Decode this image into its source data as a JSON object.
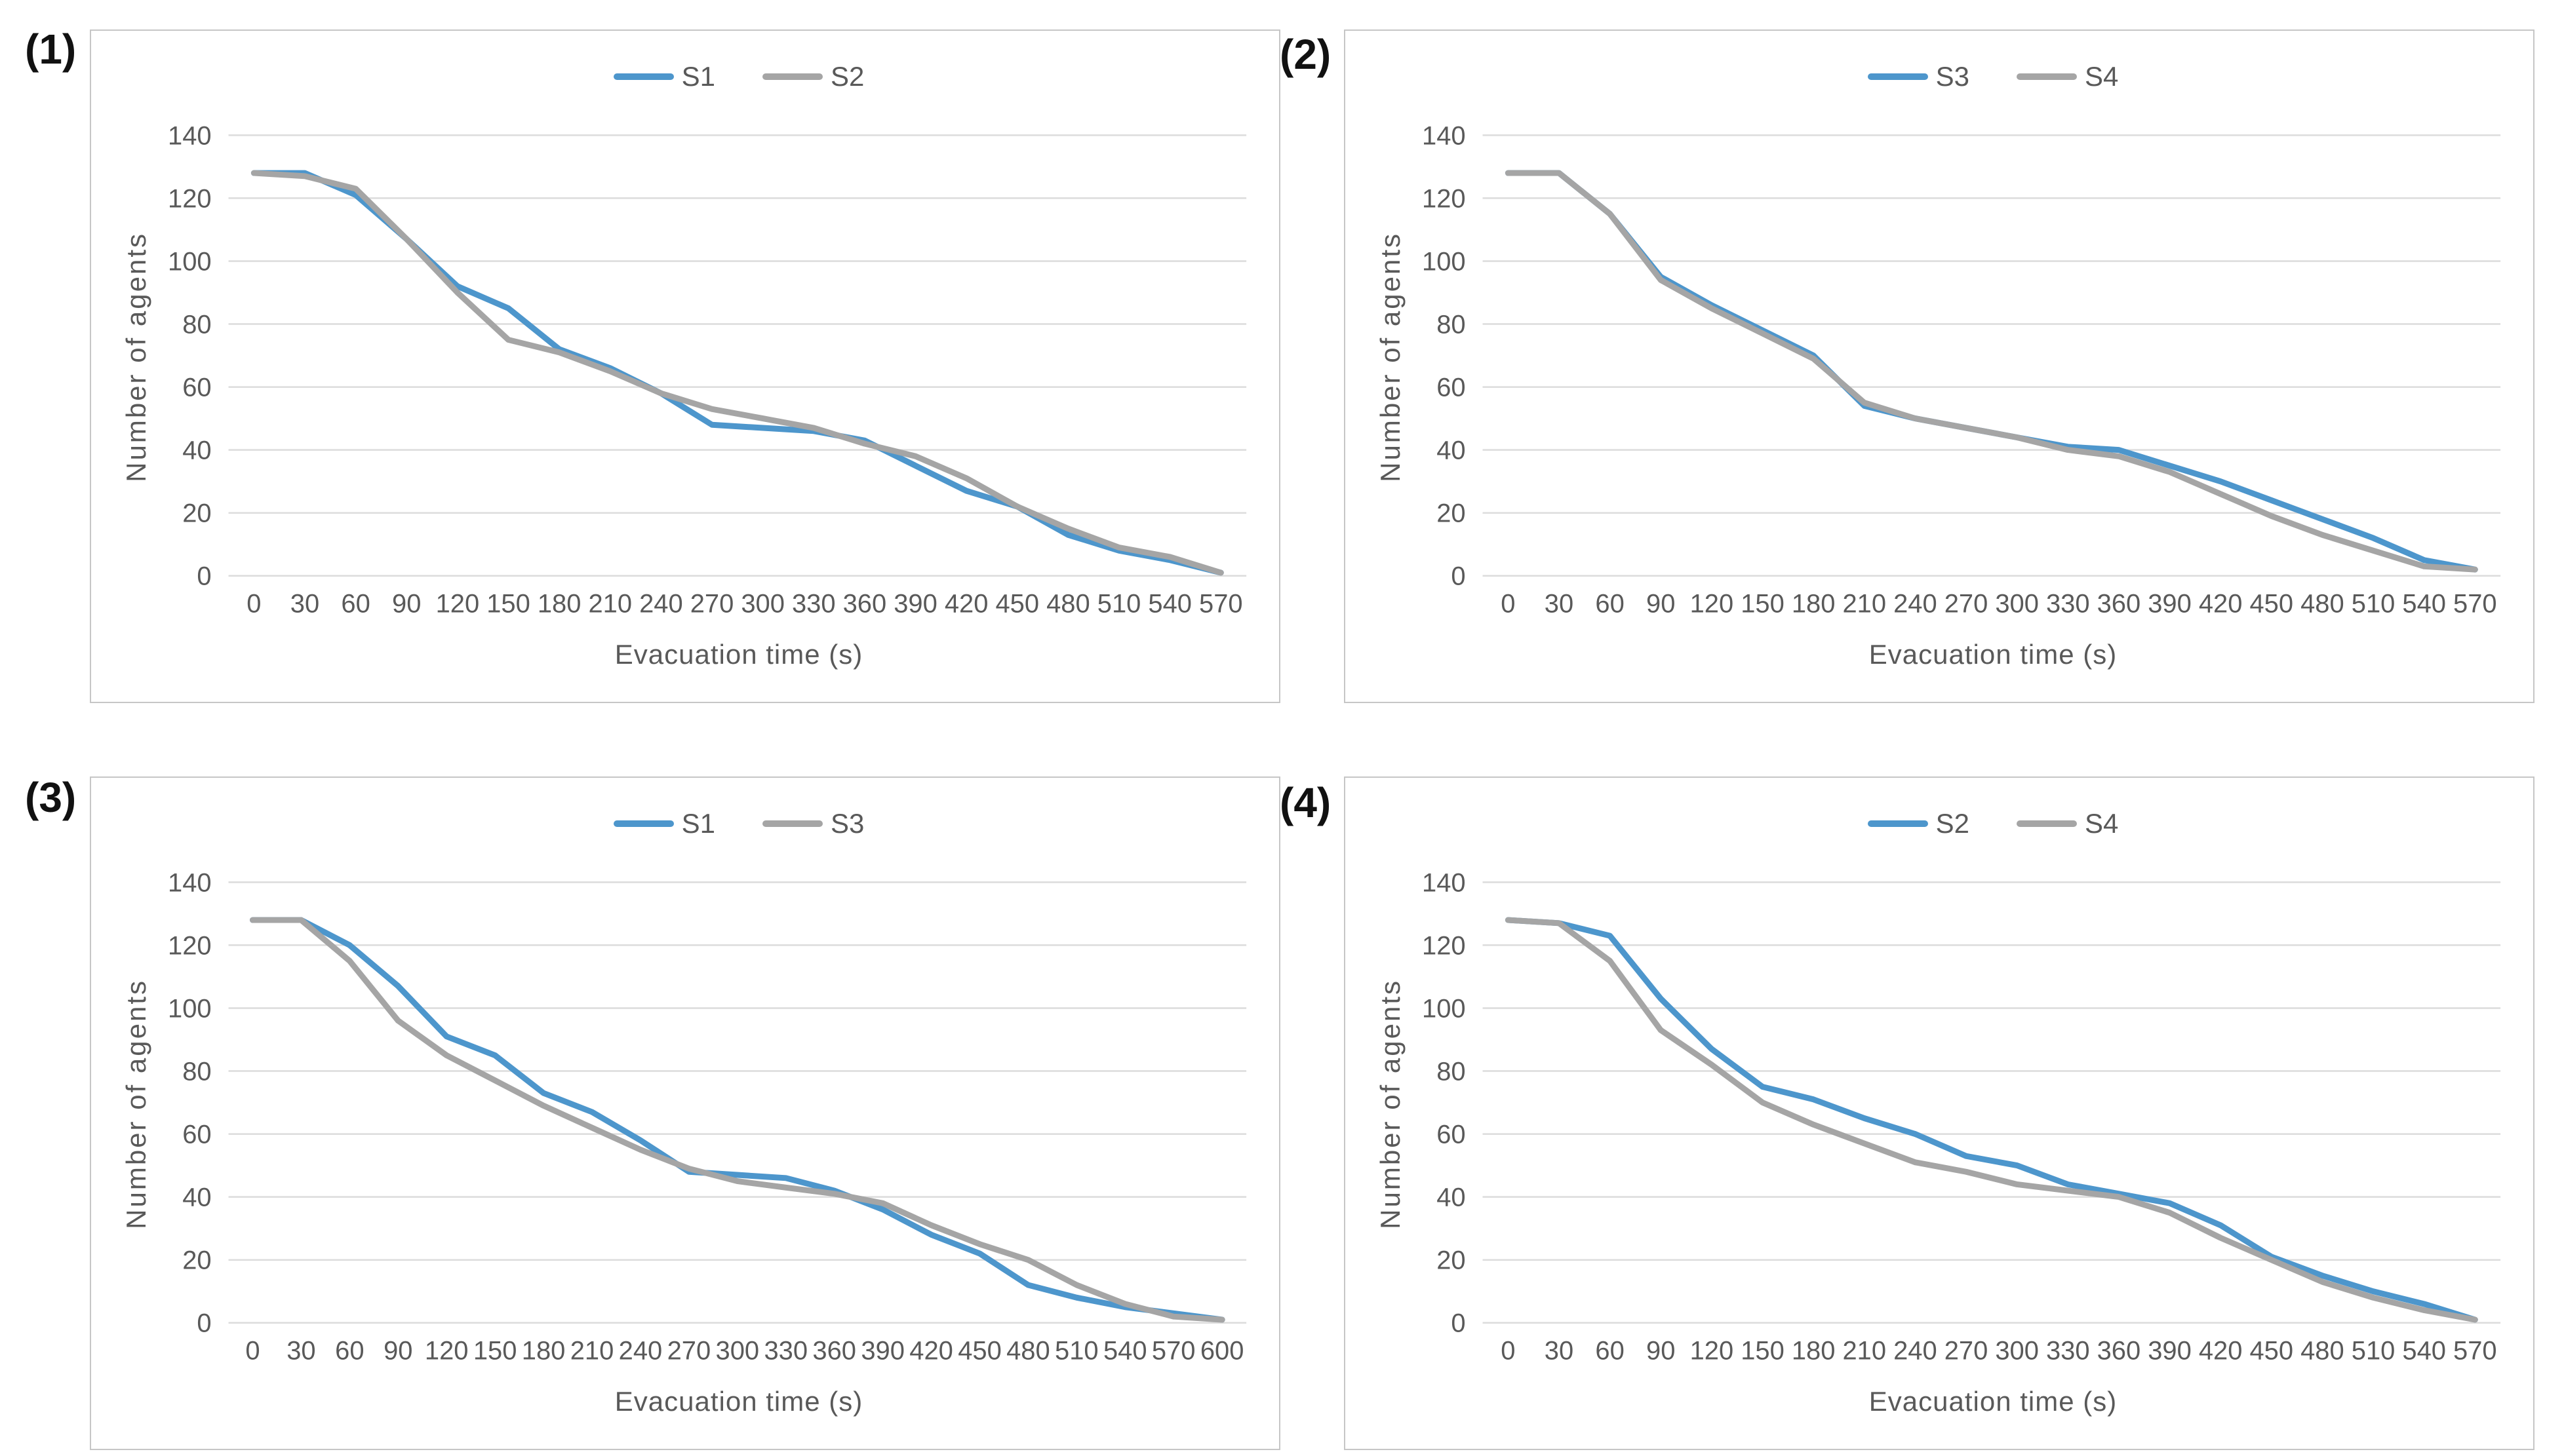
{
  "figure": {
    "description": "Four evacuation-curve line charts comparing scenarios",
    "background": "#ffffff"
  },
  "colors": {
    "series_blue": "#4d96cc",
    "series_gray": "#a5a5a5",
    "gridline": "#dcdcdc",
    "axis_text": "#595959",
    "panel_border": "#c6c6c6",
    "corner_label": "#111111"
  },
  "chart_data": [
    {
      "index_label": "(1)",
      "type": "line",
      "title": "",
      "xlabel": "Evacuation time (s)",
      "ylabel": "Number of agents",
      "ylim": [
        0,
        140
      ],
      "yticks": [
        0,
        20,
        40,
        60,
        80,
        100,
        120,
        140
      ],
      "grid": true,
      "legend_position": "top-center",
      "x": [
        0,
        30,
        60,
        90,
        120,
        150,
        180,
        210,
        240,
        270,
        300,
        330,
        360,
        390,
        420,
        450,
        480,
        510,
        540,
        570
      ],
      "series": [
        {
          "name": "S1",
          "color": "#4d96cc",
          "values": [
            128,
            128,
            121,
            107,
            92,
            85,
            72,
            66,
            58,
            48,
            47,
            46,
            43,
            35,
            27,
            22,
            13,
            8,
            5,
            1
          ]
        },
        {
          "name": "S2",
          "color": "#a5a5a5",
          "values": [
            128,
            127,
            123,
            107,
            90,
            75,
            71,
            65,
            58,
            53,
            50,
            47,
            42,
            38,
            31,
            22,
            15,
            9,
            6,
            1
          ]
        }
      ]
    },
    {
      "index_label": "(2)",
      "type": "line",
      "title": "",
      "xlabel": "Evacuation time (s)",
      "ylabel": "Number of agents",
      "ylim": [
        0,
        140
      ],
      "yticks": [
        0,
        20,
        40,
        60,
        80,
        100,
        120,
        140
      ],
      "grid": true,
      "legend_position": "top-center",
      "x": [
        0,
        30,
        60,
        90,
        120,
        150,
        180,
        210,
        240,
        270,
        300,
        330,
        360,
        390,
        420,
        450,
        480,
        510,
        540,
        570
      ],
      "series": [
        {
          "name": "S3",
          "color": "#4d96cc",
          "values": [
            128,
            128,
            115,
            95,
            86,
            78,
            70,
            54,
            50,
            47,
            44,
            41,
            40,
            35,
            30,
            24,
            18,
            12,
            5,
            2
          ]
        },
        {
          "name": "S4",
          "color": "#a5a5a5",
          "values": [
            128,
            128,
            115,
            94,
            85,
            77,
            69,
            55,
            50,
            47,
            44,
            40,
            38,
            33,
            26,
            19,
            13,
            8,
            3,
            2
          ]
        }
      ]
    },
    {
      "index_label": "(3)",
      "type": "line",
      "title": "",
      "xlabel": "Evacuation time (s)",
      "ylabel": "Number of agents",
      "ylim": [
        0,
        140
      ],
      "yticks": [
        0,
        20,
        40,
        60,
        80,
        100,
        120,
        140
      ],
      "grid": true,
      "legend_position": "top-center",
      "x": [
        0,
        30,
        60,
        90,
        120,
        150,
        180,
        210,
        240,
        270,
        300,
        330,
        360,
        390,
        420,
        450,
        480,
        510,
        540,
        570,
        600
      ],
      "series": [
        {
          "name": "S1",
          "color": "#4d96cc",
          "values": [
            128,
            128,
            120,
            107,
            91,
            85,
            73,
            67,
            58,
            48,
            47,
            46,
            42,
            36,
            28,
            22,
            12,
            8,
            5,
            3,
            1
          ]
        },
        {
          "name": "S3",
          "color": "#a5a5a5",
          "values": [
            128,
            128,
            115,
            96,
            85,
            77,
            69,
            62,
            55,
            49,
            45,
            43,
            41,
            38,
            31,
            25,
            20,
            12,
            6,
            2,
            1
          ]
        }
      ]
    },
    {
      "index_label": "(4)",
      "type": "line",
      "title": "",
      "xlabel": "Evacuation time (s)",
      "ylabel": "Number of agents",
      "ylim": [
        0,
        140
      ],
      "yticks": [
        0,
        20,
        40,
        60,
        80,
        100,
        120,
        140
      ],
      "grid": true,
      "legend_position": "top-center",
      "x": [
        0,
        30,
        60,
        90,
        120,
        150,
        180,
        210,
        240,
        270,
        300,
        330,
        360,
        390,
        420,
        450,
        480,
        510,
        540,
        570
      ],
      "series": [
        {
          "name": "S2",
          "color": "#4d96cc",
          "values": [
            128,
            127,
            123,
            103,
            87,
            75,
            71,
            65,
            60,
            53,
            50,
            44,
            41,
            38,
            31,
            21,
            15,
            10,
            6,
            1
          ]
        },
        {
          "name": "S4",
          "color": "#a5a5a5",
          "values": [
            128,
            127,
            115,
            93,
            82,
            70,
            63,
            57,
            51,
            48,
            44,
            42,
            40,
            35,
            27,
            20,
            13,
            8,
            4,
            1
          ]
        }
      ]
    }
  ]
}
